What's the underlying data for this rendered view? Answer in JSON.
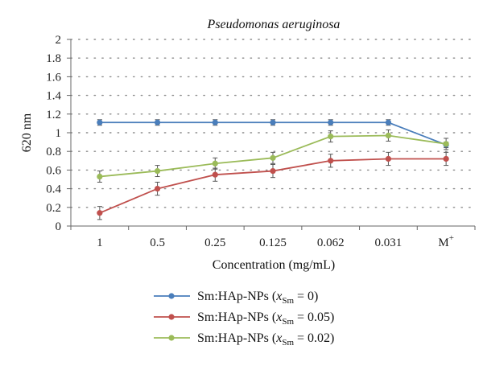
{
  "chart_data": {
    "type": "line",
    "title": "Pseudomonas aeruginosa",
    "xlabel": "Concentration (mg/mL)",
    "ylabel": "620 nm",
    "ylim": [
      0,
      2
    ],
    "yticks": [
      "0",
      "0.2",
      "0.4",
      "0.6",
      "0.8",
      "1",
      "1.2",
      "1.4",
      "1.6",
      "1.8",
      "2"
    ],
    "categories": [
      "1",
      "0.5",
      "0.25",
      "0.125",
      "0.062",
      "0.031",
      "M"
    ],
    "last_category_superscript": "+",
    "grid": "dotted horizontal",
    "legend_position": "bottom",
    "series": [
      {
        "name": "Sm:HAp-NPs (",
        "name_var": "x",
        "name_sub": "Sm",
        "name_tail": " = 0)",
        "color": "#4a7ebb",
        "values": [
          1.11,
          1.11,
          1.11,
          1.11,
          1.11,
          1.11,
          0.87
        ],
        "errors": [
          0.03,
          0.03,
          0.03,
          0.03,
          0.03,
          0.03,
          0.03
        ]
      },
      {
        "name": "Sm:HAp-NPs (",
        "name_var": "x",
        "name_sub": "Sm",
        "name_tail": " = 0.05)",
        "color": "#c0504d",
        "values": [
          0.14,
          0.4,
          0.55,
          0.59,
          0.7,
          0.72,
          0.72
        ],
        "errors": [
          0.07,
          0.07,
          0.07,
          0.07,
          0.07,
          0.07,
          0.07
        ]
      },
      {
        "name": "Sm:HAp-NPs (",
        "name_var": "x",
        "name_sub": "Sm",
        "name_tail": " = 0.02)",
        "color": "#9bbb59",
        "values": [
          0.53,
          0.59,
          0.67,
          0.73,
          0.96,
          0.97,
          0.88
        ],
        "errors": [
          0.06,
          0.06,
          0.06,
          0.06,
          0.06,
          0.06,
          0.06
        ]
      }
    ]
  }
}
